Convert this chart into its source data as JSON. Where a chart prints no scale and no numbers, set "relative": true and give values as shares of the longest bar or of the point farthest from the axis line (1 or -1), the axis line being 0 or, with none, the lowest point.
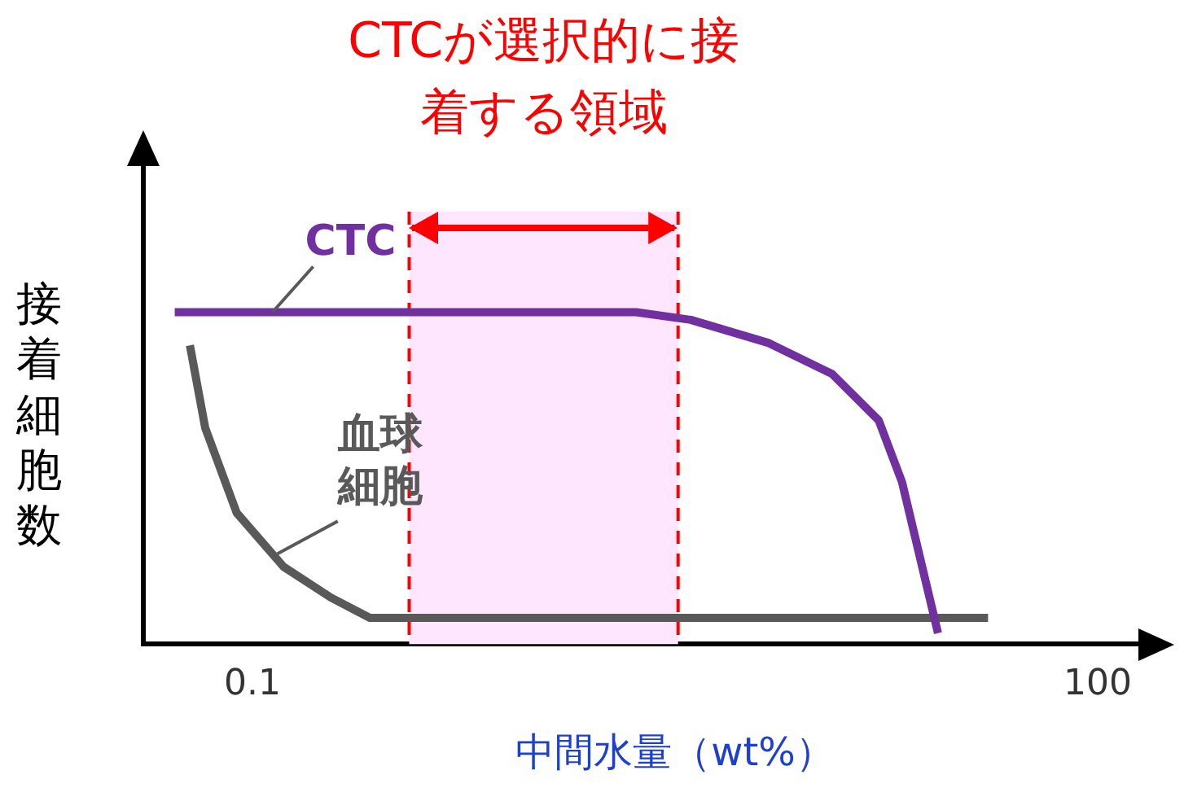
{
  "chart_data": {
    "type": "line",
    "relative": true,
    "log": "x",
    "xlabel": "中間水量（wt%）",
    "ylabel": "接着細胞数",
    "xlim": [
      0.041,
      147
    ],
    "xticks": [
      0.1,
      100
    ],
    "legend": false,
    "grid": false,
    "marker": "none",
    "line_style": "solid",
    "series": [
      {
        "name": "CTC",
        "color": "#7030a0",
        "x": [
          0.053,
          2.3,
          3.59,
          6.8,
          11.4,
          16.7,
          20.2,
          27.1
        ],
        "values": [
          1,
          1,
          0.977,
          0.907,
          0.814,
          0.674,
          0.488,
          0.033
        ]
      },
      {
        "name": "血球細胞",
        "color": "#595959",
        "x": [
          0.06,
          0.068,
          0.088,
          0.129,
          0.19,
          0.261,
          40.8
        ],
        "values": [
          0.9,
          0.651,
          0.395,
          0.233,
          0.14,
          0.079,
          0.079
        ]
      }
    ],
    "bands": [
      {
        "axis": "x",
        "from": 0.36,
        "to": 3.24,
        "label": "CTCが選択的に接着する領域",
        "color": "#ffe6ff"
      }
    ],
    "ref_lines": [
      {
        "axis": "x",
        "value": 0.36,
        "color": "#ff0000",
        "line_style": "dashed"
      },
      {
        "axis": "x",
        "value": 3.24,
        "color": "#ff0000",
        "line_style": "dashed"
      }
    ]
  }
}
